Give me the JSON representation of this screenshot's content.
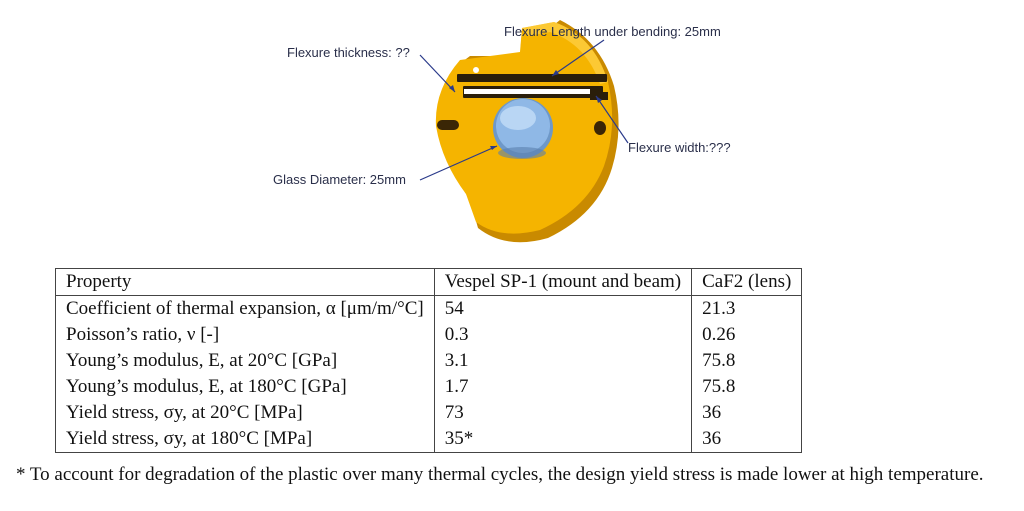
{
  "figure": {
    "callouts": {
      "flexure_length": "Flexure Length under bending: 25mm",
      "flexure_thickness": "Flexure thickness: ??",
      "flexure_width": "Flexure width:???",
      "glass_diameter": "Glass Diameter: 25mm"
    },
    "colors": {
      "mount": "#f5b400",
      "mount_shadow": "#c98a00",
      "lens": "#8fb8e6",
      "slot": "#2a1e0a",
      "arrow": "#2a3a8a"
    }
  },
  "table": {
    "header": [
      "Property",
      "Vespel SP-1 (mount and beam)",
      "CaF2 (lens)"
    ],
    "rows": [
      [
        "Coefficient of thermal expansion, α [μm/m/°C]",
        "54",
        "21.3"
      ],
      [
        "Poisson’s ratio, ν [-]",
        "0.3",
        "0.26"
      ],
      [
        "Young’s modulus, E, at 20°C [GPa]",
        "3.1",
        "75.8"
      ],
      [
        "Young’s modulus, E, at 180°C [GPa]",
        "1.7",
        "75.8"
      ],
      [
        "Yield stress, σy, at 20°C [MPa]",
        "73",
        "36"
      ],
      [
        "Yield stress, σy, at 180°C [MPa]",
        "35*",
        "36"
      ]
    ]
  },
  "footnote": "* To account for degradation of the plastic over many thermal cycles, the design yield stress is made lower at high temperature."
}
